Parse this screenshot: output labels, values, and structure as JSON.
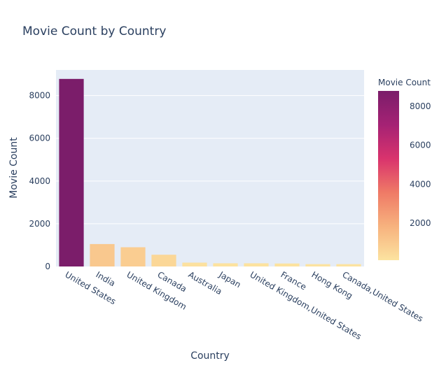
{
  "chart_data": {
    "type": "bar",
    "title": "Movie Count by Country",
    "xlabel": "Country",
    "ylabel": "Movie Count",
    "ylim": [
      0,
      9200
    ],
    "yticks": [
      0,
      2000,
      4000,
      6000,
      8000
    ],
    "categories": [
      "United States",
      "India",
      "United Kingdom",
      "Canada",
      "Australia",
      "Japan",
      "United Kingdom,United States",
      "France",
      "Hong Kong",
      "Canada,United States"
    ],
    "values": [
      8780,
      1050,
      900,
      550,
      180,
      150,
      150,
      140,
      110,
      110
    ],
    "colorbar": {
      "title": "Movie Count",
      "range": [
        110,
        8780
      ],
      "ticks": [
        2000,
        4000,
        6000,
        8000
      ],
      "colorscale": [
        "#fce3a0",
        "#f7b27e",
        "#ef7a66",
        "#d9336d",
        "#a52274",
        "#7b1d6a"
      ]
    },
    "grid": true,
    "legend": "colorbar-right"
  }
}
